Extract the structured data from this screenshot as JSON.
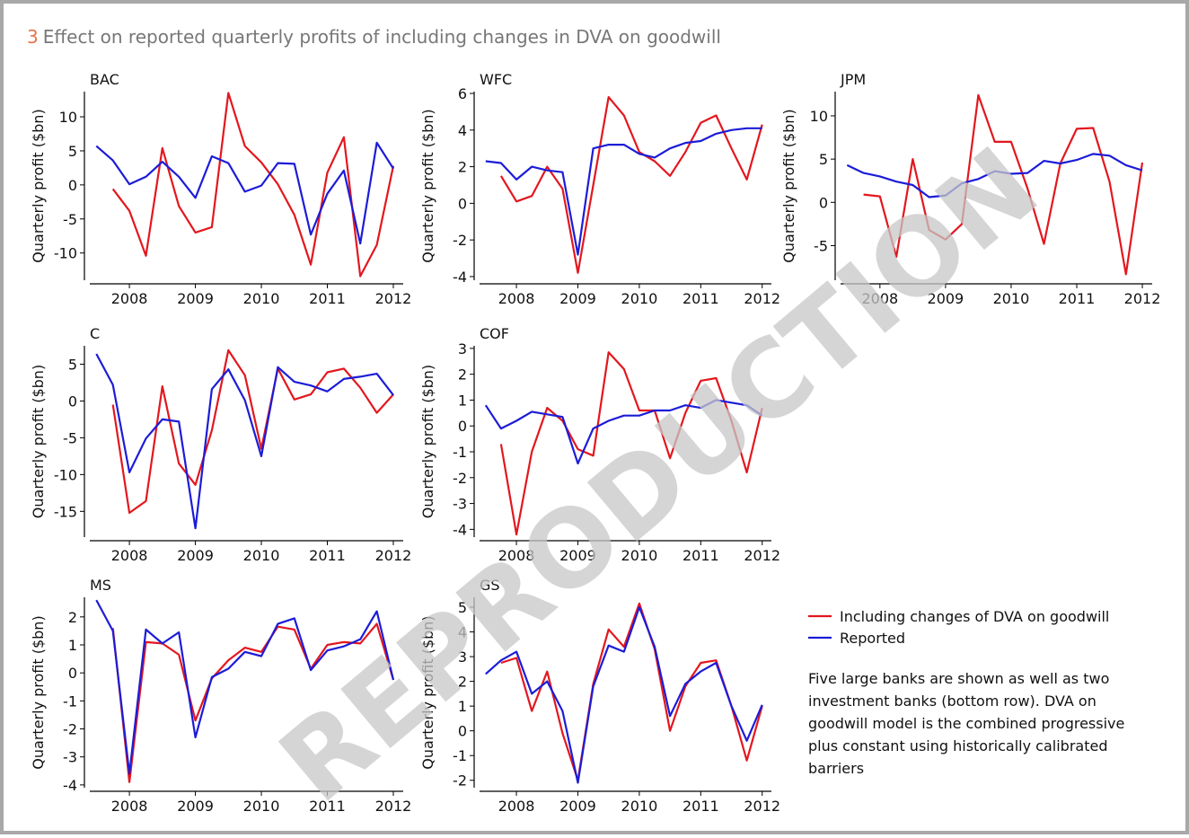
{
  "figure_number": "3",
  "title": "Effect on reported quarterly profits of including changes in DVA on goodwill",
  "chart_data": [
    {
      "type": "line",
      "title": "BAC",
      "y_label": "Quarterly profit ($bn)",
      "x": [
        2007.5,
        2007.75,
        2008,
        2008.25,
        2008.5,
        2008.75,
        2009,
        2009.25,
        2009.5,
        2009.75,
        2010,
        2010.25,
        2010.5,
        2010.75,
        2011,
        2011.25,
        2011.5,
        2011.75,
        2012
      ],
      "xlim": [
        2007.4,
        2012.15
      ],
      "xticks": [
        2008,
        2009,
        2010,
        2011,
        2012
      ],
      "ylim": [
        -14,
        13.7
      ],
      "yticks": [
        -10,
        -5,
        0,
        5,
        10
      ],
      "series": [
        {
          "name": "Including changes of DVA on goodwill",
          "color": "#e3171e",
          "values": [
            null,
            -0.6,
            -3.8,
            -10.4,
            5.4,
            -3.1,
            -7.0,
            -6.2,
            13.5,
            5.7,
            3.3,
            0.1,
            -4.4,
            -11.7,
            1.8,
            7.0,
            -13.4,
            -8.8,
            2.8
          ]
        },
        {
          "name": "Reported",
          "color": "#1c1cd8",
          "values": [
            5.7,
            3.6,
            0.1,
            1.2,
            3.4,
            1.2,
            -1.9,
            4.2,
            3.2,
            -1.0,
            -0.1,
            3.2,
            3.1,
            -7.3,
            -1.3,
            2.1,
            -8.6,
            6.2,
            2.4
          ]
        }
      ]
    },
    {
      "type": "line",
      "title": "WFC",
      "y_label": "Quarterly profit ($bn)",
      "x": [
        2007.5,
        2007.75,
        2008,
        2008.25,
        2008.5,
        2008.75,
        2009,
        2009.25,
        2009.5,
        2009.75,
        2010,
        2010.25,
        2010.5,
        2010.75,
        2011,
        2011.25,
        2011.5,
        2011.75,
        2012
      ],
      "xlim": [
        2007.4,
        2012.15
      ],
      "xticks": [
        2008,
        2009,
        2010,
        2011,
        2012
      ],
      "ylim": [
        -4.2,
        6.1
      ],
      "yticks": [
        -4,
        -2,
        0,
        2,
        4,
        6
      ],
      "series": [
        {
          "name": "Including changes of DVA on goodwill",
          "color": "#e3171e",
          "values": [
            null,
            1.5,
            0.1,
            0.4,
            2.0,
            0.8,
            -3.8,
            1.0,
            5.8,
            4.8,
            2.8,
            2.3,
            1.5,
            2.8,
            4.4,
            4.8,
            3.0,
            1.3,
            4.3
          ]
        },
        {
          "name": "Reported",
          "color": "#1c1cd8",
          "values": [
            2.3,
            2.2,
            1.3,
            2.0,
            1.8,
            1.7,
            -2.8,
            3.0,
            3.2,
            3.2,
            2.7,
            2.5,
            3.0,
            3.3,
            3.4,
            3.8,
            4.0,
            4.1,
            4.1
          ]
        }
      ]
    },
    {
      "type": "line",
      "title": "JPM",
      "y_label": "Quarterly profit ($bn)",
      "x": [
        2007.5,
        2007.75,
        2008,
        2008.25,
        2008.5,
        2008.75,
        2009,
        2009.25,
        2009.5,
        2009.75,
        2010,
        2010.25,
        2010.5,
        2010.75,
        2011,
        2011.25,
        2011.5,
        2011.75,
        2012
      ],
      "xlim": [
        2007.4,
        2012.15
      ],
      "xticks": [
        2008,
        2009,
        2010,
        2011,
        2012
      ],
      "ylim": [
        -9,
        12.8
      ],
      "yticks": [
        -5,
        0,
        5,
        10
      ],
      "series": [
        {
          "name": "Including changes of DVA on goodwill",
          "color": "#e3171e",
          "values": [
            null,
            0.9,
            0.7,
            -6.3,
            5.0,
            -3.2,
            -4.3,
            -2.5,
            12.4,
            7.0,
            7.0,
            1.6,
            -4.8,
            4.5,
            8.5,
            8.6,
            2.4,
            -8.3,
            4.6
          ]
        },
        {
          "name": "Reported",
          "color": "#1c1cd8",
          "values": [
            4.3,
            3.4,
            3.0,
            2.4,
            2.0,
            0.6,
            0.8,
            2.2,
            2.7,
            3.6,
            3.3,
            3.4,
            4.8,
            4.5,
            4.9,
            5.6,
            5.4,
            4.3,
            3.7
          ]
        }
      ]
    },
    {
      "type": "line",
      "title": "C",
      "y_label": "Quarterly profit ($bn)",
      "x": [
        2007.5,
        2007.75,
        2008,
        2008.25,
        2008.5,
        2008.75,
        2009,
        2009.25,
        2009.5,
        2009.75,
        2010,
        2010.25,
        2010.5,
        2010.75,
        2011,
        2011.25,
        2011.5,
        2011.75,
        2012
      ],
      "xlim": [
        2007.4,
        2012.15
      ],
      "xticks": [
        2008,
        2009,
        2010,
        2011,
        2012
      ],
      "ylim": [
        -18.5,
        7.5
      ],
      "yticks": [
        -15,
        -10,
        -5,
        0,
        5
      ],
      "series": [
        {
          "name": "Including changes of DVA on goodwill",
          "color": "#e3171e",
          "values": [
            null,
            -0.5,
            -15.2,
            -13.6,
            2.0,
            -8.5,
            -11.4,
            -4.0,
            6.9,
            3.5,
            -6.5,
            4.4,
            0.2,
            0.9,
            3.9,
            4.4,
            1.8,
            -1.6,
            0.9
          ]
        },
        {
          "name": "Reported",
          "color": "#1c1cd8",
          "values": [
            6.4,
            2.2,
            -9.7,
            -5.1,
            -2.5,
            -2.8,
            -17.3,
            1.6,
            4.3,
            0.1,
            -7.5,
            4.6,
            2.6,
            2.1,
            1.3,
            3.0,
            3.3,
            3.7,
            0.8
          ]
        }
      ]
    },
    {
      "type": "line",
      "title": "COF",
      "y_label": "Quarterly profit ($bn)",
      "x": [
        2007.5,
        2007.75,
        2008,
        2008.25,
        2008.5,
        2008.75,
        2009,
        2009.25,
        2009.5,
        2009.75,
        2010,
        2010.25,
        2010.5,
        2010.75,
        2011,
        2011.25,
        2011.5,
        2011.75,
        2012
      ],
      "xlim": [
        2007.4,
        2012.15
      ],
      "xticks": [
        2008,
        2009,
        2010,
        2011,
        2012
      ],
      "ylim": [
        -4.3,
        3.1
      ],
      "yticks": [
        -4,
        -3,
        -2,
        -1,
        0,
        1,
        2,
        3
      ],
      "series": [
        {
          "name": "Including changes of DVA on goodwill",
          "color": "#e3171e",
          "values": [
            null,
            -0.7,
            -4.2,
            -1.0,
            0.7,
            0.2,
            -0.9,
            -1.15,
            2.85,
            2.2,
            0.6,
            0.6,
            -1.25,
            0.5,
            1.75,
            1.85,
            0.2,
            -1.8,
            0.7
          ]
        },
        {
          "name": "Reported",
          "color": "#1c1cd8",
          "values": [
            0.8,
            -0.1,
            0.2,
            0.55,
            0.45,
            0.35,
            -1.45,
            -0.1,
            0.2,
            0.4,
            0.4,
            0.6,
            0.6,
            0.8,
            0.7,
            1.0,
            0.9,
            0.8,
            0.4
          ]
        }
      ]
    },
    {
      "type": "line",
      "title": "MS",
      "y_label": "Quarterly profit ($bn)",
      "x": [
        2007.5,
        2007.75,
        2008,
        2008.25,
        2008.5,
        2008.75,
        2009,
        2009.25,
        2009.5,
        2009.75,
        2010,
        2010.25,
        2010.5,
        2010.75,
        2011,
        2011.25,
        2011.5,
        2011.75,
        2012
      ],
      "xlim": [
        2007.4,
        2012.15
      ],
      "xticks": [
        2008,
        2009,
        2010,
        2011,
        2012
      ],
      "ylim": [
        -4.1,
        2.7
      ],
      "yticks": [
        -4,
        -3,
        -2,
        -1,
        0,
        1,
        2
      ],
      "series": [
        {
          "name": "Including changes of DVA on goodwill",
          "color": "#e3171e",
          "values": [
            null,
            1.6,
            -3.9,
            1.1,
            1.05,
            0.65,
            -1.7,
            -0.2,
            0.45,
            0.9,
            0.75,
            1.65,
            1.55,
            0.15,
            1.0,
            1.1,
            1.05,
            1.75,
            -0.25
          ]
        },
        {
          "name": "Reported",
          "color": "#1c1cd8",
          "values": [
            2.6,
            1.5,
            -3.6,
            1.55,
            1.05,
            1.45,
            -2.3,
            -0.15,
            0.15,
            0.75,
            0.6,
            1.75,
            1.95,
            0.1,
            0.8,
            0.95,
            1.2,
            2.2,
            -0.25
          ]
        }
      ]
    },
    {
      "type": "line",
      "title": "GS",
      "y_label": "Quarterly profit ($bn)",
      "x": [
        2007.5,
        2007.75,
        2008,
        2008.25,
        2008.5,
        2008.75,
        2009,
        2009.25,
        2009.5,
        2009.75,
        2010,
        2010.25,
        2010.5,
        2010.75,
        2011,
        2011.25,
        2011.5,
        2011.75,
        2012
      ],
      "xlim": [
        2007.4,
        2012.15
      ],
      "xticks": [
        2008,
        2009,
        2010,
        2011,
        2012
      ],
      "ylim": [
        -2.3,
        5.4
      ],
      "yticks": [
        -2,
        -1,
        0,
        1,
        2,
        3,
        4,
        5
      ],
      "series": [
        {
          "name": "Including changes of DVA on goodwill",
          "color": "#e3171e",
          "values": [
            null,
            2.75,
            2.95,
            0.8,
            2.4,
            -0.1,
            -2.0,
            1.9,
            4.1,
            3.4,
            5.15,
            3.3,
            0.0,
            1.8,
            2.75,
            2.85,
            1.0,
            -1.2,
            1.0
          ]
        },
        {
          "name": "Reported",
          "color": "#1c1cd8",
          "values": [
            2.3,
            2.85,
            3.2,
            1.5,
            2.0,
            0.8,
            -2.1,
            1.8,
            3.45,
            3.2,
            5.0,
            3.4,
            0.6,
            1.9,
            2.4,
            2.75,
            1.0,
            -0.4,
            1.05
          ]
        }
      ]
    }
  ],
  "note": [
    "Five large banks are shown as well as two",
    "investment banks (bottom row). DVA on",
    "goodwill model is the combined progressive",
    "plus constant using historically calibrated",
    "barriers"
  ],
  "watermark": "REPRODUCTION"
}
